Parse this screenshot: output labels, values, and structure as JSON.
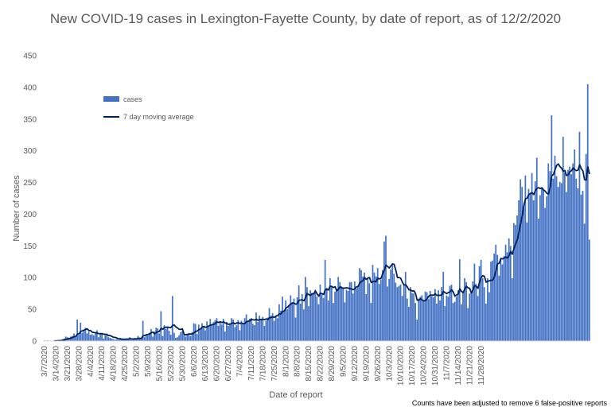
{
  "chart_data": {
    "type": "bar",
    "title": "New COVID-19 cases in Lexington-Fayette County, by date of report, as of 12/2/2020",
    "xlabel": "Date of report",
    "ylabel": "Number of cases",
    "ylim": [
      0,
      450
    ],
    "yticks": [
      0,
      50,
      100,
      150,
      200,
      250,
      300,
      350,
      400,
      450
    ],
    "x_tick_labels": [
      "3/7/2020",
      "3/14/2020",
      "3/21/2020",
      "3/28/2020",
      "4/4/2020",
      "4/11/2020",
      "4/18/2020",
      "4/25/2020",
      "5/2/2020",
      "5/9/2020",
      "5/16/2020",
      "5/23/2020",
      "5/30/2020",
      "6/6/2020",
      "6/13/2020",
      "6/20/2020",
      "6/27/2020",
      "7/4/2020",
      "7/11/2020",
      "7/18/2020",
      "7/25/2020",
      "8/1/2020",
      "8/8/2020",
      "8/15/2020",
      "8/22/2020",
      "8/29/2020",
      "9/5/2020",
      "9/12/2020",
      "9/19/2020",
      "9/26/2020",
      "10/3/2020",
      "10/10/2020",
      "10/17/2020",
      "10/24/2020",
      "10/31/2020",
      "11/7/2020",
      "11/14/2020",
      "11/21/2020",
      "11/28/2020"
    ],
    "grid": false,
    "legend_position": "upper-left",
    "series": [
      {
        "name": "cases",
        "kind": "bar",
        "color": "#4472C4",
        "values": [
          1,
          0,
          1,
          0,
          0,
          0,
          1,
          0,
          1,
          2,
          1,
          3,
          4,
          7,
          6,
          4,
          7,
          8,
          12,
          6,
          34,
          10,
          29,
          13,
          16,
          21,
          12,
          15,
          10,
          11,
          9,
          14,
          17,
          6,
          13,
          12,
          4,
          9,
          11,
          6,
          5,
          4,
          3,
          2,
          3,
          2,
          5,
          3,
          2,
          4,
          3,
          3,
          6,
          2,
          3,
          4,
          3,
          8,
          5,
          3,
          32,
          6,
          11,
          9,
          13,
          19,
          7,
          15,
          21,
          20,
          12,
          47,
          8,
          25,
          19,
          23,
          16,
          10,
          71,
          13,
          5,
          6,
          9,
          14,
          16,
          11,
          7,
          10,
          12,
          8,
          14,
          28,
          27,
          11,
          26,
          19,
          28,
          23,
          17,
          31,
          22,
          35,
          25,
          30,
          33,
          36,
          24,
          30,
          26,
          35,
          15,
          30,
          24,
          28,
          36,
          34,
          22,
          25,
          33,
          17,
          32,
          28,
          36,
          42,
          31,
          35,
          36,
          27,
          25,
          45,
          30,
          40,
          35,
          38,
          24,
          32,
          37,
          52,
          40,
          44,
          32,
          39,
          36,
          58,
          48,
          70,
          48,
          64,
          50,
          56,
          72,
          61,
          67,
          37,
          69,
          88,
          59,
          74,
          50,
          101,
          85,
          55,
          80,
          76,
          75,
          81,
          70,
          58,
          89,
          73,
          68,
          128,
          84,
          64,
          99,
          87,
          60,
          78,
          82,
          101,
          93,
          86,
          84,
          61,
          81,
          79,
          93,
          93,
          75,
          94,
          83,
          86,
          115,
          112,
          102,
          108,
          74,
          99,
          91,
          60,
          120,
          108,
          102,
          115,
          90,
          97,
          112,
          157,
          166,
          86,
          98,
          113,
          120,
          106,
          92,
          85,
          87,
          89,
          71,
          89,
          109,
          67,
          54,
          85,
          76,
          75,
          60,
          34,
          67,
          70,
          72,
          65,
          78,
          77,
          66,
          79,
          71,
          69,
          82,
          59,
          80,
          64,
          85,
          109,
          55,
          72,
          70,
          87,
          89,
          60,
          62,
          70,
          80,
          129,
          58,
          76,
          99,
          93,
          52,
          75,
          78,
          94,
          122,
          90,
          71,
          118,
          128,
          99,
          85,
          59,
          99,
          77,
          125,
          127,
          138,
          152,
          136,
          103,
          130,
          121,
          134,
          152,
          140,
          162,
          150,
          99,
          186,
          183,
          198,
          222,
          255,
          243,
          210,
          261,
          187,
          240,
          232,
          265,
          222,
          252,
          289,
          193,
          230,
          241,
          240,
          210,
          228,
          280,
          268,
          356,
          256,
          292,
          260,
          243,
          251,
          249,
          322,
          266,
          235,
          270,
          275,
          263,
          280,
          302,
          256,
          241,
          330,
          231,
          237,
          185,
          295,
          405,
          160
        ]
      },
      {
        "name": "7 day moving average",
        "kind": "line",
        "color": "#002060",
        "values_note": "computed from the cases series (trailing 7-day mean)"
      }
    ]
  },
  "note": "Counts have been adjusted to remove 6 false-positive reports"
}
